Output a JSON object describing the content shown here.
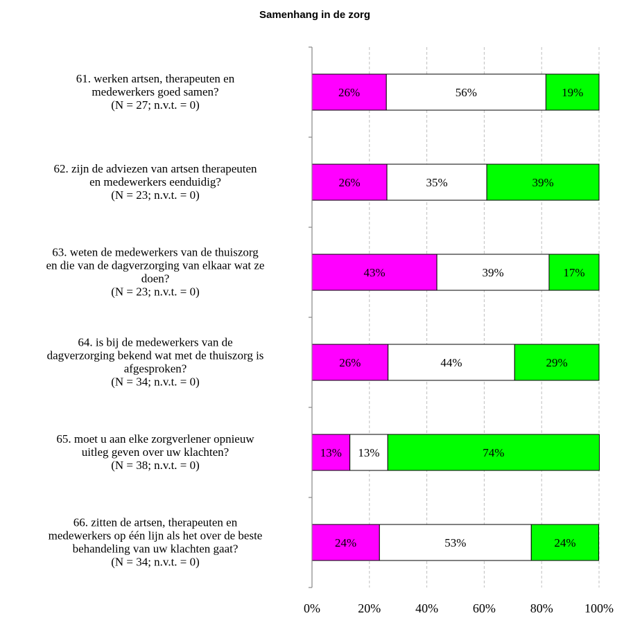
{
  "chart_data": {
    "type": "bar",
    "orientation": "horizontal",
    "stacked": "percent",
    "title": "Samenhang in de zorg",
    "xlim": [
      0,
      100
    ],
    "x_ticks": [
      "0%",
      "20%",
      "40%",
      "60%",
      "80%",
      "100%"
    ],
    "grid": "vertical dashed",
    "series_colors": [
      "#ff00ff",
      "#ffffff",
      "#00ff00"
    ],
    "categories": [
      {
        "lines": [
          "61. werken artsen, therapeuten en",
          "medewerkers goed samen?",
          "(N = 27; n.v.t. = 0)"
        ]
      },
      {
        "lines": [
          "62. zijn de adviezen van artsen therapeuten",
          "en medewerkers eenduidig?",
          "(N = 23; n.v.t. = 0)"
        ]
      },
      {
        "lines": [
          "63. weten de medewerkers van de thuiszorg",
          "en die van de dagverzorging van elkaar wat ze",
          "doen?",
          "(N = 23; n.v.t. = 0)"
        ]
      },
      {
        "lines": [
          "64. is bij de medewerkers van de",
          "dagverzorging bekend wat met de thuiszorg is",
          "afgesproken?",
          "(N = 34; n.v.t. = 0)"
        ]
      },
      {
        "lines": [
          "65. moet u aan elke zorgverlener opnieuw",
          "uitleg geven over uw klachten?",
          "(N = 38; n.v.t. = 0)"
        ]
      },
      {
        "lines": [
          "66. zitten de artsen, therapeuten en",
          "medewerkers op één lijn als het over de beste",
          "behandeling van uw klachten gaat?",
          "(N = 34; n.v.t. = 0)"
        ]
      }
    ],
    "series": [
      {
        "values": [
          25.9,
          26.1,
          43.5,
          26.5,
          13.2,
          23.5
        ],
        "labels": [
          "26%",
          "26%",
          "43%",
          "26%",
          "13%",
          "24%"
        ]
      },
      {
        "values": [
          55.6,
          34.8,
          39.1,
          44.1,
          13.2,
          52.9
        ],
        "labels": [
          "56%",
          "35%",
          "39%",
          "44%",
          "13%",
          "53%"
        ]
      },
      {
        "values": [
          18.5,
          39.1,
          17.4,
          29.4,
          73.7,
          23.5
        ],
        "labels": [
          "19%",
          "39%",
          "17%",
          "29%",
          "74%",
          "24%"
        ]
      }
    ]
  }
}
